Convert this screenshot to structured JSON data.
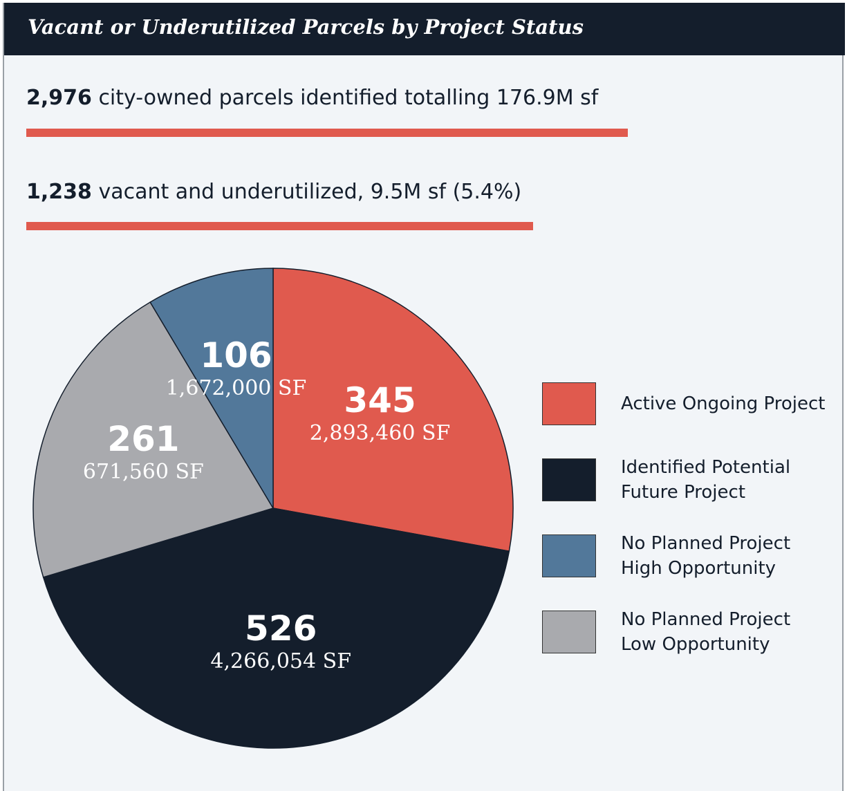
{
  "chart_data": {
    "type": "pie",
    "title": "Vacant or Underutilized Parcels by Project Status",
    "annotations": [
      {
        "bold": "2,976",
        "text": " city-owned parcels identified totalling 176.9M sf"
      },
      {
        "bold": "1,238",
        "text": " vacant and underutilized, 9.5M sf (5.4%)"
      }
    ],
    "categories": [
      "Active Ongoing Project",
      "Identified Potential Future Project",
      "No Planned Project Low Opportunity",
      "No Planned Project High Opportunity"
    ],
    "values": [
      345,
      526,
      261,
      106
    ],
    "sf": [
      2893460,
      4266054,
      671560,
      1672000
    ],
    "sf_labels": [
      "2,893,460 SF",
      "4,266,054 SF",
      "671,560 SF",
      "1,672,000 SF"
    ],
    "colors": [
      "#e05a4e",
      "#141e2c",
      "#a9aaae",
      "#52789a"
    ],
    "legend_order": [
      0,
      1,
      3,
      2
    ]
  }
}
